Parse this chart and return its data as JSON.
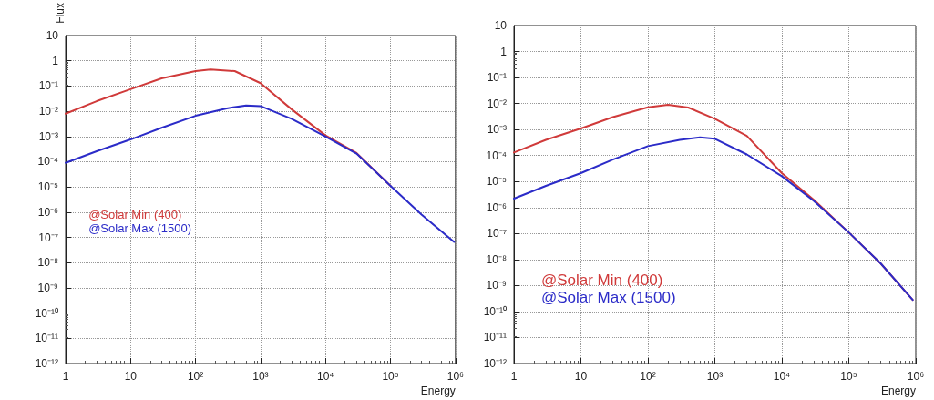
{
  "chart_data": [
    {
      "type": "line",
      "xlabel": "Energy",
      "ylabel": "Flux",
      "log": "xy",
      "grid": true,
      "legend": "center left",
      "marker": "none",
      "line_style": "solid",
      "xlim": [
        1,
        1000000
      ],
      "ylim": [
        1e-12,
        10
      ],
      "xticks": [
        {
          "value": 1,
          "label": "1"
        },
        {
          "value": 10,
          "label": "10"
        },
        {
          "value": 100,
          "label": "10²"
        },
        {
          "value": 1000,
          "label": "10³"
        },
        {
          "value": 10000,
          "label": "10⁴"
        },
        {
          "value": 100000,
          "label": "10⁵"
        },
        {
          "value": 1000000,
          "label": "10⁶"
        }
      ],
      "yticks": [
        {
          "value": 1e-12,
          "label": "10⁻¹²"
        },
        {
          "value": 1e-11,
          "label": "10⁻¹¹"
        },
        {
          "value": 1e-10,
          "label": "10⁻¹⁰"
        },
        {
          "value": 1e-09,
          "label": "10⁻⁹"
        },
        {
          "value": 1e-08,
          "label": "10⁻⁸"
        },
        {
          "value": 1e-07,
          "label": "10⁻⁷"
        },
        {
          "value": 1e-06,
          "label": "10⁻⁶"
        },
        {
          "value": 1e-05,
          "label": "10⁻⁵"
        },
        {
          "value": 0.0001,
          "label": "10⁻⁴"
        },
        {
          "value": 0.001,
          "label": "10⁻³"
        },
        {
          "value": 0.01,
          "label": "10⁻²"
        },
        {
          "value": 0.1,
          "label": "10⁻¹"
        },
        {
          "value": 1,
          "label": "1"
        },
        {
          "value": 10,
          "label": "10"
        }
      ],
      "series": [
        {
          "name": "@Solar Min (400)",
          "color": "#d03a3a",
          "x": [
            1,
            3,
            10,
            30,
            100,
            170,
            400,
            1000,
            3000,
            10000,
            30000,
            100000
          ],
          "values": [
            0.008,
            0.025,
            0.075,
            0.2,
            0.39,
            0.45,
            0.39,
            0.13,
            0.012,
            0.0011,
            0.00022,
            1.1e-05
          ]
        },
        {
          "name": "@Solar Max (1500)",
          "color": "#2b2bc8",
          "x": [
            1,
            3,
            10,
            30,
            100,
            300,
            600,
            1000,
            3000,
            10000,
            30000,
            100000,
            300000,
            950000
          ],
          "values": [
            9e-05,
            0.00026,
            0.00076,
            0.0022,
            0.0066,
            0.013,
            0.017,
            0.016,
            0.005,
            0.001,
            0.00021,
            1.1e-05,
            8e-07,
            6.6e-08
          ]
        }
      ]
    },
    {
      "type": "line",
      "xlabel": "Energy",
      "log": "xy",
      "grid": true,
      "legend": "bottom left",
      "marker": "none",
      "line_style": "solid",
      "xlim": [
        1,
        1000000
      ],
      "ylim": [
        1e-12,
        10
      ],
      "xticks": [
        {
          "value": 1,
          "label": "1"
        },
        {
          "value": 10,
          "label": "10"
        },
        {
          "value": 100,
          "label": "10²"
        },
        {
          "value": 1000,
          "label": "10³"
        },
        {
          "value": 10000,
          "label": "10⁴"
        },
        {
          "value": 100000,
          "label": "10⁵"
        },
        {
          "value": 1000000,
          "label": "10⁶"
        }
      ],
      "yticks": [
        {
          "value": 1e-12,
          "label": "10⁻¹²"
        },
        {
          "value": 1e-11,
          "label": "10⁻¹¹"
        },
        {
          "value": 1e-10,
          "label": "10⁻¹⁰"
        },
        {
          "value": 1e-09,
          "label": "10⁻⁹"
        },
        {
          "value": 1e-08,
          "label": "10⁻⁸"
        },
        {
          "value": 1e-07,
          "label": "10⁻⁷"
        },
        {
          "value": 1e-06,
          "label": "10⁻⁶"
        },
        {
          "value": 1e-05,
          "label": "10⁻⁵"
        },
        {
          "value": 0.0001,
          "label": "10⁻⁴"
        },
        {
          "value": 0.001,
          "label": "10⁻³"
        },
        {
          "value": 0.01,
          "label": "10⁻²"
        },
        {
          "value": 0.1,
          "label": "10⁻¹"
        },
        {
          "value": 1,
          "label": "1"
        },
        {
          "value": 10,
          "label": "10"
        }
      ],
      "series": [
        {
          "name": "@Solar Min (400)",
          "color": "#d03a3a",
          "x": [
            1,
            3,
            10,
            30,
            100,
            200,
            400,
            1000,
            3000,
            10000,
            30000,
            100000,
            300000,
            900000
          ],
          "values": [
            0.00013,
            0.0004,
            0.0011,
            0.003,
            0.0072,
            0.0089,
            0.007,
            0.0026,
            0.00057,
            2.1e-05,
            2e-06,
            1.1e-07,
            7e-09,
            2.8e-10
          ]
        },
        {
          "name": "@Solar Max (1500)",
          "color": "#2b2bc8",
          "x": [
            1,
            3,
            10,
            30,
            100,
            300,
            600,
            1000,
            3000,
            10000,
            30000,
            100000,
            300000,
            900000
          ],
          "values": [
            2.2e-06,
            6.8e-06,
            2.1e-05,
            7e-05,
            0.00023,
            0.0004,
            0.0005,
            0.00044,
            0.00011,
            1.6e-05,
            1.8e-06,
            1.1e-07,
            7e-09,
            2.8e-10
          ]
        }
      ]
    }
  ]
}
